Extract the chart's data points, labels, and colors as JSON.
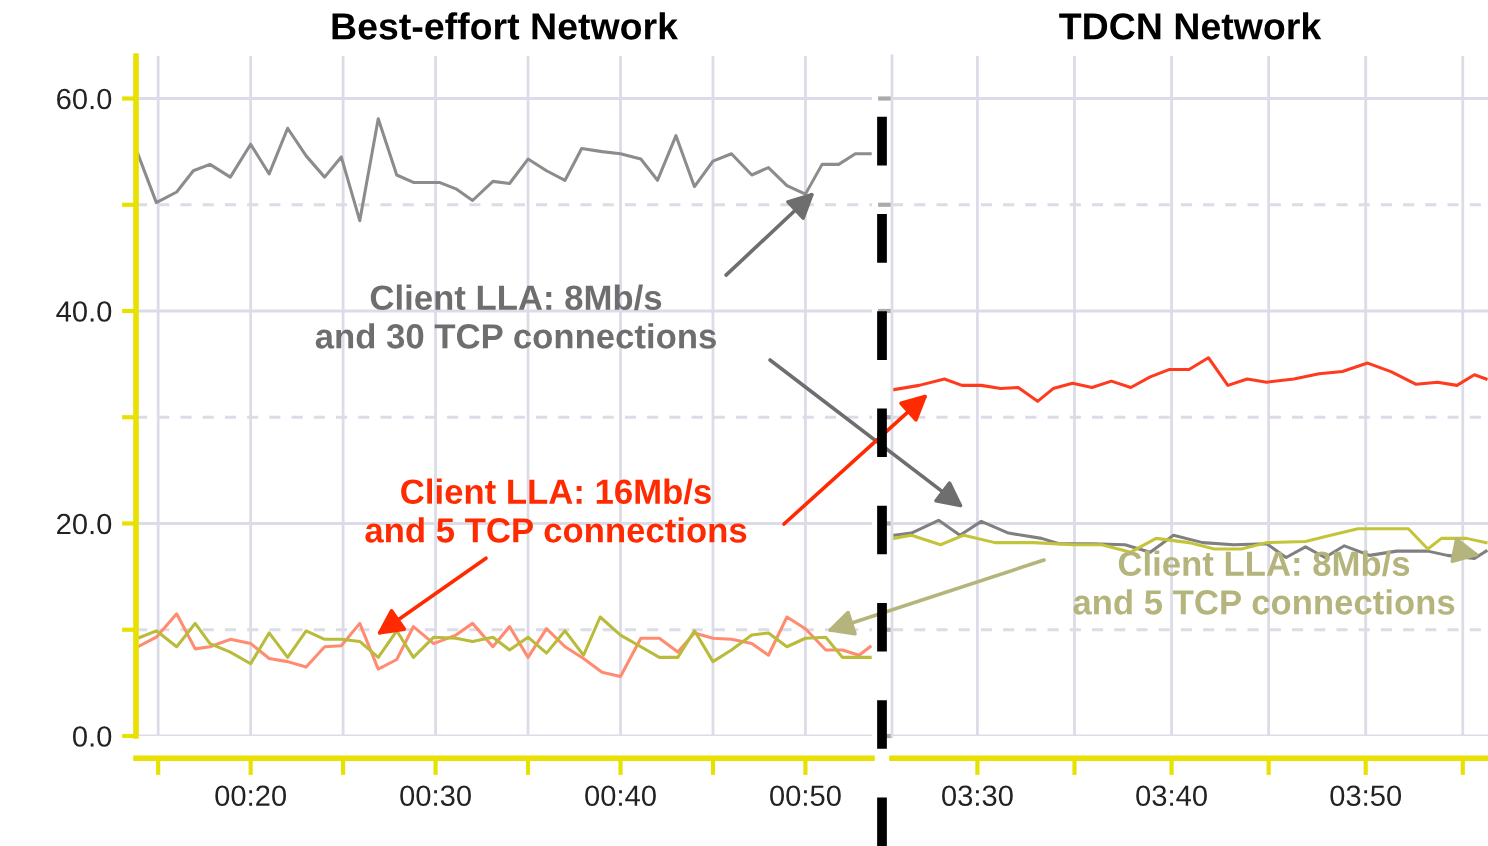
{
  "chart_data": [
    {
      "type": "line",
      "title": "Best-effort Network",
      "xlim": [
        13.8,
        53.6
      ],
      "ylim": [
        0,
        64
      ],
      "grid": true,
      "xticks": [
        {
          "value": 15,
          "label": null
        },
        {
          "value": 20,
          "label": "00:20"
        },
        {
          "value": 25,
          "label": null
        },
        {
          "value": 30,
          "label": "00:30"
        },
        {
          "value": 35,
          "label": null
        },
        {
          "value": 40,
          "label": "00:40"
        },
        {
          "value": 45,
          "label": null
        },
        {
          "value": 50,
          "label": "00:50"
        }
      ],
      "yticks": [
        {
          "value": 0,
          "label": "0.0"
        },
        {
          "value": 10,
          "label": null
        },
        {
          "value": 20,
          "label": "20.0"
        },
        {
          "value": 30,
          "label": null
        },
        {
          "value": 40,
          "label": "40.0"
        },
        {
          "value": 50,
          "label": null
        },
        {
          "value": 60,
          "label": "60.0"
        }
      ],
      "annotations": [
        {
          "text": "Client LLA: 8Mb/s\nand 30 TCP connections",
          "x": 50.5,
          "y": 51.2
        },
        {
          "text": "Client LLA: 16Mb/s\nand 5 TCP connections",
          "x": 26.8,
          "y": 9.5
        }
      ],
      "series": [
        {
          "color": "#8c8c8c",
          "x": [
            13.9,
            14.9,
            16.0,
            16.9,
            17.8,
            18.9,
            20.0,
            21.0,
            22.0,
            23.0,
            24.0,
            24.9,
            25.9,
            26.9,
            27.9,
            28.8,
            30.2,
            31.1,
            32.0,
            33.1,
            34.0,
            35.0,
            36.0,
            37.0,
            37.9,
            39.0,
            40.0,
            41.1,
            42.0,
            43.0,
            44.0,
            45.0,
            46.0,
            47.1,
            48.0,
            49.0,
            50.0,
            50.9,
            51.8,
            52.7,
            53.5
          ],
          "values": [
            54.8,
            50.2,
            51.2,
            53.2,
            53.8,
            52.6,
            55.7,
            52.9,
            57.2,
            54.6,
            52.6,
            54.5,
            48.5,
            58.1,
            52.8,
            52.1,
            52.1,
            51.5,
            50.4,
            52.2,
            52.0,
            54.3,
            53.2,
            52.3,
            55.3,
            55.0,
            54.8,
            54.3,
            52.3,
            56.5,
            51.7,
            54.1,
            54.8,
            52.8,
            53.5,
            51.8,
            51.0,
            53.8,
            53.8,
            54.8,
            54.8
          ]
        },
        {
          "color": "#ff8c70",
          "x": [
            13.9,
            14.9,
            16.0,
            17.0,
            17.8,
            18.9,
            20.0,
            21.0,
            22.0,
            23.0,
            24.0,
            24.9,
            25.9,
            26.9,
            27.9,
            28.8,
            29.9,
            31.1,
            32.0,
            33.1,
            34.0,
            35.0,
            36.0,
            37.0,
            38.0,
            39.0,
            40.0,
            41.1,
            42.1,
            43.1,
            44.0,
            45.0,
            46.0,
            47.1,
            48.0,
            49.0,
            50.0,
            51.1,
            52.0,
            52.9,
            53.5
          ],
          "values": [
            8.4,
            9.3,
            11.5,
            8.2,
            8.4,
            9.1,
            8.7,
            7.3,
            7.0,
            6.5,
            8.4,
            8.5,
            10.6,
            6.3,
            7.2,
            10.3,
            8.7,
            9.5,
            10.6,
            8.4,
            10.3,
            7.4,
            10.1,
            8.4,
            7.3,
            6.0,
            5.6,
            9.2,
            9.2,
            7.9,
            9.7,
            9.2,
            9.1,
            8.7,
            7.6,
            11.2,
            10.1,
            8.1,
            8.1,
            7.6,
            8.4
          ]
        },
        {
          "color": "#b8bc3a",
          "x": [
            13.9,
            14.9,
            16.0,
            17.0,
            17.8,
            18.9,
            20.0,
            21.0,
            22.0,
            23.0,
            24.0,
            24.9,
            25.9,
            26.9,
            27.9,
            28.8,
            29.9,
            31.1,
            32.0,
            33.1,
            34.0,
            35.0,
            36.0,
            37.0,
            38.0,
            38.9,
            40.0,
            41.1,
            42.1,
            43.1,
            44.0,
            45.0,
            46.0,
            47.1,
            48.0,
            49.0,
            50.0,
            51.1,
            52.0,
            53.5
          ],
          "values": [
            9.2,
            9.9,
            8.4,
            10.6,
            8.7,
            7.9,
            6.8,
            9.7,
            7.4,
            9.9,
            9.1,
            9.1,
            8.9,
            7.4,
            9.9,
            7.4,
            9.3,
            9.2,
            8.9,
            9.3,
            8.1,
            9.3,
            7.8,
            9.9,
            7.6,
            11.2,
            9.5,
            8.4,
            7.4,
            7.4,
            9.9,
            7.0,
            8.1,
            9.5,
            9.7,
            8.4,
            9.2,
            9.3,
            7.4,
            7.4
          ]
        }
      ]
    },
    {
      "type": "line",
      "title": "TDCN Network",
      "xlim": [
        205.6,
        236.3
      ],
      "ylim": [
        0,
        64
      ],
      "grid": true,
      "tick_labels": "x",
      "xticks": [
        {
          "value": 210,
          "label": "03:30"
        },
        {
          "value": 215,
          "label": null
        },
        {
          "value": 220,
          "label": "03:40"
        },
        {
          "value": 225,
          "label": null
        },
        {
          "value": 230,
          "label": "03:50"
        },
        {
          "value": 235,
          "label": null
        }
      ],
      "yticks": [
        0,
        {
          "value": 10,
          "label": null
        },
        20,
        {
          "value": 30,
          "label": null
        },
        40,
        {
          "value": 50,
          "label": null
        },
        60
      ],
      "annotations": [
        {
          "text": "Client LLA: 8Mb/s\nand 5 TCP connections",
          "x": 235.9,
          "y": 17.0
        }
      ],
      "series": [
        {
          "color": "#808080",
          "x": [
            205.7,
            206.6,
            208.0,
            209.1,
            210.2,
            211.6,
            213.3,
            214.2,
            215.9,
            217.6,
            218.9,
            220.1,
            221.6,
            223.2,
            224.9,
            225.9,
            226.9,
            227.9,
            228.9,
            230.2,
            231.6,
            233.2,
            234.2,
            235.6,
            236.2
          ],
          "values": [
            18.9,
            19.1,
            20.3,
            18.9,
            20.2,
            19.1,
            18.6,
            18.1,
            18.1,
            18.0,
            17.3,
            18.9,
            18.2,
            18.0,
            18.1,
            16.8,
            17.8,
            16.8,
            17.9,
            17.0,
            17.4,
            17.4,
            17.0,
            16.7,
            17.4
          ]
        },
        {
          "color": "#ff3b1f",
          "x": [
            205.7,
            207.0,
            208.3,
            209.2,
            210.2,
            211.2,
            212.1,
            213.1,
            213.9,
            214.9,
            215.9,
            216.9,
            217.9,
            218.9,
            219.9,
            220.9,
            221.9,
            222.9,
            223.9,
            224.9,
            226.3,
            227.6,
            228.8,
            230.1,
            231.3,
            232.6,
            233.7,
            234.7,
            235.6,
            236.2
          ],
          "values": [
            32.6,
            33.0,
            33.6,
            33.0,
            33.0,
            32.7,
            32.8,
            31.5,
            32.7,
            33.2,
            32.8,
            33.4,
            32.8,
            33.8,
            34.5,
            34.5,
            35.6,
            33.0,
            33.6,
            33.3,
            33.6,
            34.1,
            34.3,
            35.1,
            34.3,
            33.1,
            33.3,
            33.0,
            34.0,
            33.6
          ]
        },
        {
          "color": "#c4c43a",
          "x": [
            205.7,
            206.6,
            208.1,
            209.3,
            210.9,
            212.9,
            214.9,
            216.4,
            217.9,
            219.2,
            220.9,
            222.2,
            223.6,
            224.9,
            226.9,
            228.2,
            229.6,
            232.2,
            233.2,
            233.9,
            235.2,
            236.2
          ],
          "values": [
            18.6,
            18.9,
            18.0,
            18.9,
            18.2,
            18.2,
            18.0,
            18.0,
            17.3,
            18.6,
            18.2,
            17.6,
            17.6,
            18.2,
            18.3,
            18.9,
            19.5,
            19.5,
            17.6,
            18.6,
            18.6,
            18.2
          ]
        }
      ]
    }
  ]
}
